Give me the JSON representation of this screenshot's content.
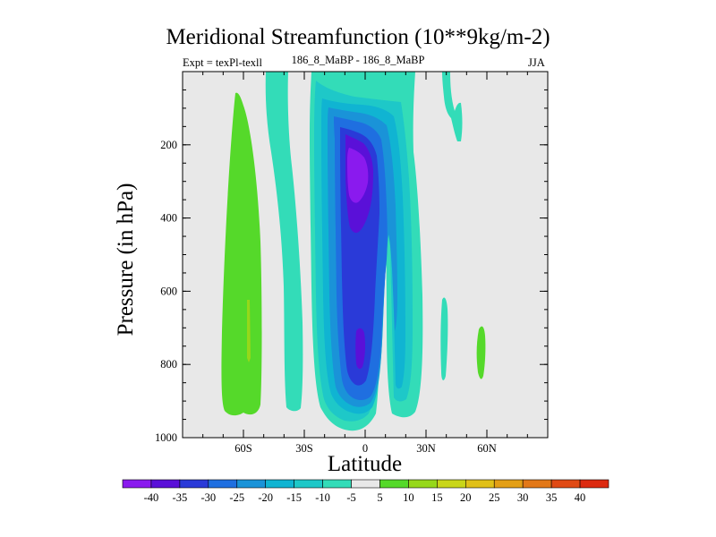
{
  "title": "Meridional Streamfunction (10**9kg/m-2)",
  "expt_label": "Expt = texPl-texll",
  "subtitle": "186_8_MaBP - 186_8_MaBP",
  "season": "JJA",
  "colors": {
    "background": "#e8e8e8",
    "frame": "#000000"
  },
  "chart_data": {
    "type": "contour",
    "title": "Meridional Streamfunction (10**9kg/m-2)",
    "xlabel": "Latitude",
    "ylabel": "Pressure (in hPa)",
    "xlim": [
      -90,
      90
    ],
    "ylim": [
      1000,
      0
    ],
    "x_ticks": [
      {
        "value": -60,
        "label": "60S"
      },
      {
        "value": -30,
        "label": "30S"
      },
      {
        "value": 0,
        "label": "0"
      },
      {
        "value": 30,
        "label": "30N"
      },
      {
        "value": 60,
        "label": "60N"
      }
    ],
    "y_ticks": [
      {
        "value": 200,
        "label": "200"
      },
      {
        "value": 400,
        "label": "400"
      },
      {
        "value": 600,
        "label": "600"
      },
      {
        "value": 800,
        "label": "800"
      },
      {
        "value": 1000,
        "label": "1000"
      }
    ],
    "colorbar": {
      "levels": [
        "-40",
        "-35",
        "-30",
        "-25",
        "-20",
        "-15",
        "-10",
        "-5",
        "5",
        "10",
        "15",
        "20",
        "25",
        "30",
        "35",
        "40"
      ],
      "colors": [
        "#8a1aee",
        "#5a10d8",
        "#2a3ad8",
        "#1f6fe0",
        "#1a93d8",
        "#10b4d2",
        "#1ec8c8",
        "#33dcb8",
        "#e8e8e8",
        "#55d92a",
        "#96d81a",
        "#c9d619",
        "#e0c018",
        "#e39f16",
        "#e27818",
        "#e04a14",
        "#dc2a10"
      ]
    },
    "regions": [
      {
        "name": "sh-positive-cell",
        "level": "5 to 10",
        "lat": [
          -62,
          -52
        ],
        "p": [
          60,
          960
        ]
      },
      {
        "name": "sh-positive-core",
        "level": "10 to 15",
        "lat": [
          -57,
          -57
        ],
        "p": [
          600,
          780
        ]
      },
      {
        "name": "sh-weak-negative-branch",
        "level": "-10 to -5",
        "lat": [
          -38,
          -25
        ],
        "p": [
          0,
          950
        ]
      },
      {
        "name": "hadley-negative-cell",
        "level": "-40 to -5",
        "lat": [
          -22,
          28
        ],
        "p": [
          0,
          990
        ]
      },
      {
        "name": "hadley-core-upper",
        "level": "-40 to -35",
        "lat": [
          -10,
          5
        ],
        "p": [
          150,
          290
        ]
      },
      {
        "name": "nh-weak-negative-branch",
        "level": "-10 to -5",
        "lat": [
          40,
          48
        ],
        "p": [
          0,
          180
        ]
      },
      {
        "name": "nh-weak-negative-blob",
        "level": "-10 to -5",
        "lat": [
          38,
          41
        ],
        "p": [
          620,
          850
        ]
      },
      {
        "name": "nh-positive-blob",
        "level": "5 to 10",
        "lat": [
          56,
          60
        ],
        "p": [
          680,
          850
        ]
      }
    ]
  }
}
